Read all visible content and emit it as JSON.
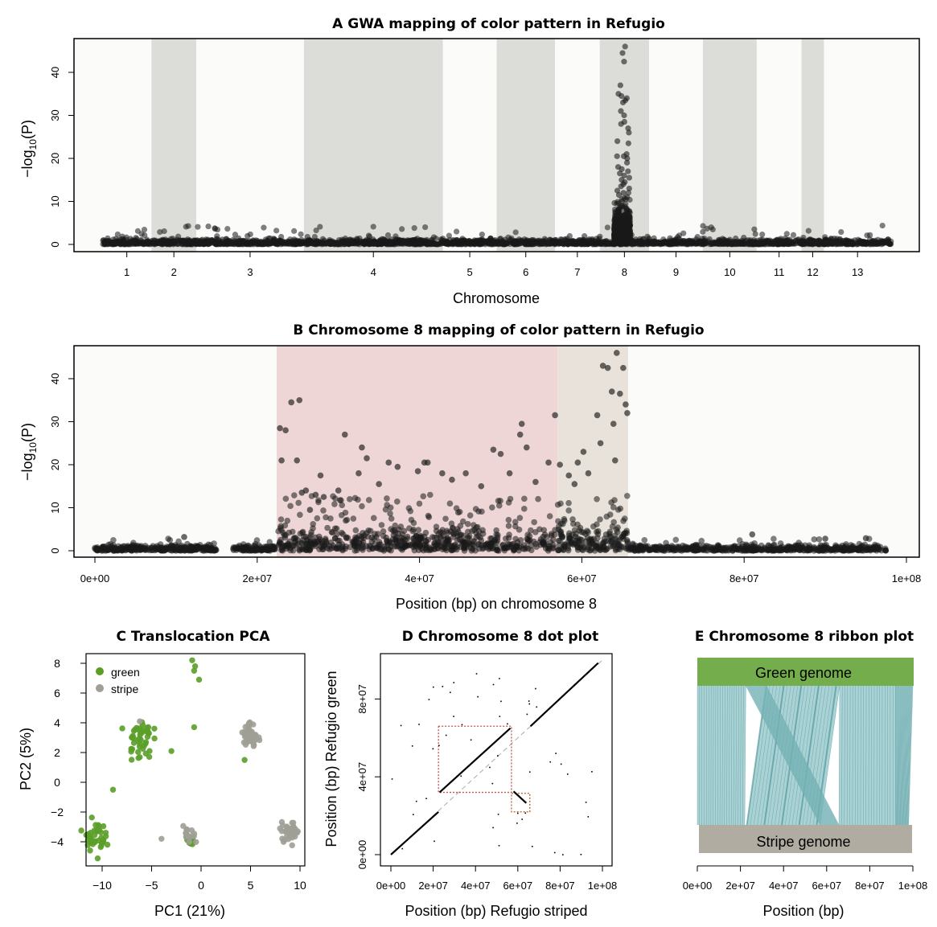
{
  "colors": {
    "background": "#ffffff",
    "chrom_band": "#dcdcd8",
    "points": "#1a1a1a",
    "pink_region": "#eed6d6",
    "beige_region": "#e8e2da",
    "green": "#5a9e28",
    "stripe": "#a09e96",
    "green_genome": "#74ad4c",
    "stripe_genome": "#b1aca2",
    "ribbon": "#8ec3c5",
    "ribbon_dark": "#3f8e93",
    "box_red": "#c0504d"
  },
  "chart_data": [
    {
      "panel": "A",
      "type": "scatter",
      "title": "GWA mapping of color pattern in Refugio",
      "xlabel": "Chromosome",
      "ylabel": "−log10(P)",
      "ylabel_base": "−log",
      "ylabel_sub": "10",
      "ylabel_tail": "(P)",
      "ylim": [
        0,
        47
      ],
      "yticks": [
        0,
        10,
        20,
        30,
        40
      ],
      "chromosomes": [
        "1",
        "2",
        "3",
        "4",
        "5",
        "6",
        "7",
        "8",
        "9",
        "10",
        "11",
        "12",
        "13"
      ],
      "chromosome_bounds": [
        [
          0,
          11
        ],
        [
          11,
          21
        ],
        [
          21,
          45
        ],
        [
          45,
          76
        ],
        [
          76,
          88
        ],
        [
          88,
          101
        ],
        [
          101,
          111
        ],
        [
          111,
          122
        ],
        [
          122,
          134
        ],
        [
          134,
          146
        ],
        [
          146,
          156
        ],
        [
          156,
          161
        ],
        [
          161,
          176
        ]
      ],
      "shaded_chromosomes": [
        "2",
        "4",
        "6",
        "8",
        "10",
        "12"
      ],
      "background_max": 4.5,
      "peak_chromosome": "8",
      "peak_points": [
        46.0,
        44.5,
        42.5,
        37.0,
        35.0,
        34.5,
        34.0,
        33.5,
        33.0,
        31.0,
        30.0,
        28.5,
        28.0,
        27.0,
        26.0,
        24.0,
        23.5,
        21.0,
        20.5,
        20.5,
        20.0,
        19.0,
        18.0,
        17.5,
        17.0,
        16.5,
        16.0,
        15.5,
        15.0,
        14.5,
        14.0,
        13.5,
        13.0,
        12.5,
        12.0,
        11.5,
        11.0,
        10.5,
        10.0
      ]
    },
    {
      "panel": "B",
      "type": "scatter",
      "title": "Chromosome 8 mapping of color pattern in Refugio",
      "xlabel": "Position (bp) on chromosome 8",
      "ylabel_base": "−log",
      "ylabel_sub": "10",
      "ylabel_tail": "(P)",
      "xlim": [
        0,
        100000000
      ],
      "ylim": [
        0,
        47
      ],
      "xticks": [
        0,
        20000000,
        40000000,
        60000000,
        80000000,
        100000000
      ],
      "xtick_labels": [
        "0e+00",
        "2e+07",
        "4e+07",
        "6e+07",
        "8e+07",
        "1e+08"
      ],
      "yticks": [
        0,
        10,
        20,
        30,
        40
      ],
      "pink_region": [
        22400000,
        57000000
      ],
      "beige_region": [
        57000000,
        65700000
      ],
      "points": [
        [
          22800000,
          28.5
        ],
        [
          23500000,
          28.0
        ],
        [
          24200000,
          34.5
        ],
        [
          25200000,
          35.0
        ],
        [
          23000000,
          21.0
        ],
        [
          24900000,
          21.0
        ],
        [
          25500000,
          13.5
        ],
        [
          26000000,
          14.0
        ],
        [
          27200000,
          13.0
        ],
        [
          27800000,
          17.5
        ],
        [
          30800000,
          27.0
        ],
        [
          32500000,
          18.0
        ],
        [
          32900000,
          24.0
        ],
        [
          33500000,
          21.5
        ],
        [
          36200000,
          20.5
        ],
        [
          37300000,
          19.5
        ],
        [
          39800000,
          18.5
        ],
        [
          40600000,
          20.5
        ],
        [
          41000000,
          20.5
        ],
        [
          42800000,
          18.0
        ],
        [
          44000000,
          16.5
        ],
        [
          45700000,
          18.0
        ],
        [
          49100000,
          23.5
        ],
        [
          50000000,
          22.5
        ],
        [
          51100000,
          18.0
        ],
        [
          52400000,
          27.0
        ],
        [
          52600000,
          29.5
        ],
        [
          53200000,
          24.0
        ],
        [
          55900000,
          20.5
        ],
        [
          56700000,
          31.5
        ],
        [
          57300000,
          20.0
        ],
        [
          58400000,
          17.5
        ],
        [
          59500000,
          20.5
        ],
        [
          60200000,
          23.0
        ],
        [
          61900000,
          31.5
        ],
        [
          62300000,
          25.0
        ],
        [
          62600000,
          43.0
        ],
        [
          63200000,
          42.5
        ],
        [
          63700000,
          37.0
        ],
        [
          63900000,
          29.5
        ],
        [
          64300000,
          46.0
        ],
        [
          64700000,
          36.5
        ],
        [
          65100000,
          42.5
        ],
        [
          65400000,
          34.0
        ],
        [
          65600000,
          32.0
        ],
        [
          64100000,
          21.0
        ],
        [
          60800000,
          18.0
        ],
        [
          59100000,
          15.5
        ],
        [
          54300000,
          16.0
        ],
        [
          47600000,
          15.0
        ],
        [
          35000000,
          15.5
        ],
        [
          30000000,
          14.0
        ],
        [
          28200000,
          12.5
        ],
        [
          26500000,
          9.5
        ],
        [
          11000000,
          3.2
        ],
        [
          37000000,
          2.5
        ],
        [
          81000000,
          3.8
        ],
        [
          90000000,
          2.8
        ],
        [
          95000000,
          2.9
        ]
      ]
    },
    {
      "panel": "C",
      "type": "scatter",
      "title": "Translocation PCA",
      "xlabel": "PC1 (21%)",
      "ylabel": "PC2 (5%)",
      "xlim": [
        -13,
        10.5
      ],
      "ylim": [
        -5.2,
        8.7
      ],
      "xticks": [
        -10,
        -5,
        0,
        5,
        10
      ],
      "xtick_labels": [
        "−10",
        "−5",
        "0",
        "5",
        "10"
      ],
      "yticks": [
        -4,
        -2,
        0,
        2,
        4,
        6,
        8
      ],
      "ytick_labels": [
        "−4",
        "−2",
        "0",
        "2",
        "4",
        "6",
        "8"
      ],
      "legend": [
        "green",
        "stripe"
      ],
      "clusters": [
        {
          "group": "green",
          "cx": -10.8,
          "cy": -3.6,
          "n": 40,
          "sx": 0.55,
          "sy": 0.5
        },
        {
          "group": "green",
          "cx": -6.2,
          "cy": 3.0,
          "n": 45,
          "sx": 0.6,
          "sy": 0.7
        },
        {
          "group": "green",
          "cx": -1.2,
          "cy": -3.9,
          "n": 10,
          "sx": 0.3,
          "sy": 0.4
        },
        {
          "group": "green",
          "cx": 4.9,
          "cy": 3.5,
          "n": 4,
          "sx": 0.25,
          "sy": 0.4
        },
        {
          "group": "stripe",
          "cx": 5.0,
          "cy": 3.1,
          "n": 45,
          "sx": 0.35,
          "sy": 0.45
        },
        {
          "group": "stripe",
          "cx": 8.9,
          "cy": -3.3,
          "n": 40,
          "sx": 0.5,
          "sy": 0.3
        },
        {
          "group": "stripe",
          "cx": -1.2,
          "cy": -3.6,
          "n": 14,
          "sx": 0.3,
          "sy": 0.3
        }
      ],
      "extra_points": [
        {
          "group": "green",
          "x": -0.9,
          "y": 8.2
        },
        {
          "group": "green",
          "x": -0.6,
          "y": 7.8
        },
        {
          "group": "green",
          "x": -0.7,
          "y": 7.5
        },
        {
          "group": "green",
          "x": -0.2,
          "y": 6.9
        },
        {
          "group": "green",
          "x": -0.7,
          "y": 3.7
        },
        {
          "group": "green",
          "x": -3.0,
          "y": 2.1
        },
        {
          "group": "green",
          "x": -8.9,
          "y": -0.5
        },
        {
          "group": "green",
          "x": 4.4,
          "y": 1.5
        },
        {
          "group": "stripe",
          "x": -4.0,
          "y": -3.8
        },
        {
          "group": "stripe",
          "x": -6.2,
          "y": 4.1
        }
      ]
    },
    {
      "panel": "D",
      "type": "scatter",
      "title": "Chromosome 8 dot plot",
      "xlabel": "Position (bp) Refugio striped",
      "ylabel": "Position (bp) Refugio green",
      "xlim": [
        -2000000,
        103000000
      ],
      "ylim": [
        -2000000,
        103000000
      ],
      "xticks": [
        0,
        20000000,
        40000000,
        60000000,
        80000000,
        100000000
      ],
      "xtick_labels": [
        "0e+00",
        "2e+07",
        "4e+07",
        "6e+07",
        "8e+07",
        "1e+08"
      ],
      "yticks": [
        0,
        40000000,
        80000000
      ],
      "ytick_labels": [
        "0e+00",
        "4e+07",
        "8e+07"
      ],
      "segments": [
        {
          "x": [
            0,
            22500000
          ],
          "y": [
            0,
            22000000
          ]
        },
        {
          "x": [
            23000000,
            56500000
          ],
          "y": [
            32000000,
            65000000
          ]
        },
        {
          "x": [
            58000000,
            64000000
          ],
          "y": [
            32500000,
            26500000
          ]
        },
        {
          "x": [
            66000000,
            98000000
          ],
          "y": [
            66000000,
            98500000
          ]
        }
      ],
      "dashed_diagonal": [
        [
          0,
          0
        ],
        [
          100000000,
          100000000
        ]
      ],
      "boxes": [
        {
          "x": [
            22500000,
            57000000
          ],
          "y": [
            32000000,
            66000000
          ]
        },
        {
          "x": [
            57000000,
            65700000
          ],
          "y": [
            22000000,
            31500000
          ]
        }
      ]
    },
    {
      "panel": "E",
      "type": "ribbon",
      "title": "Chromosome 8 ribbon plot",
      "xlabel": "Position (bp)",
      "top_genome": "Green genome",
      "bottom_genome": "Stripe genome",
      "xlim": [
        0,
        100000000
      ],
      "xticks": [
        0,
        20000000,
        40000000,
        60000000,
        80000000,
        100000000
      ],
      "xtick_labels": [
        "0e+00",
        "2e+07",
        "4e+07",
        "6e+07",
        "8e+07",
        "1e+08"
      ],
      "blocks": [
        {
          "top": [
            0,
            22500000
          ],
          "bottom": [
            0,
            22000000
          ]
        },
        {
          "top": [
            32000000,
            66000000
          ],
          "bottom": [
            23000000,
            57000000
          ]
        },
        {
          "top": [
            22500000,
            32000000
          ],
          "bottom": [
            57000000,
            65700000
          ]
        },
        {
          "top": [
            66000000,
            92000000
          ],
          "bottom": [
            65700000,
            92000000
          ]
        },
        {
          "top": [
            92000000,
            100000000
          ],
          "bottom": [
            92000000,
            98000000
          ]
        }
      ]
    }
  ]
}
